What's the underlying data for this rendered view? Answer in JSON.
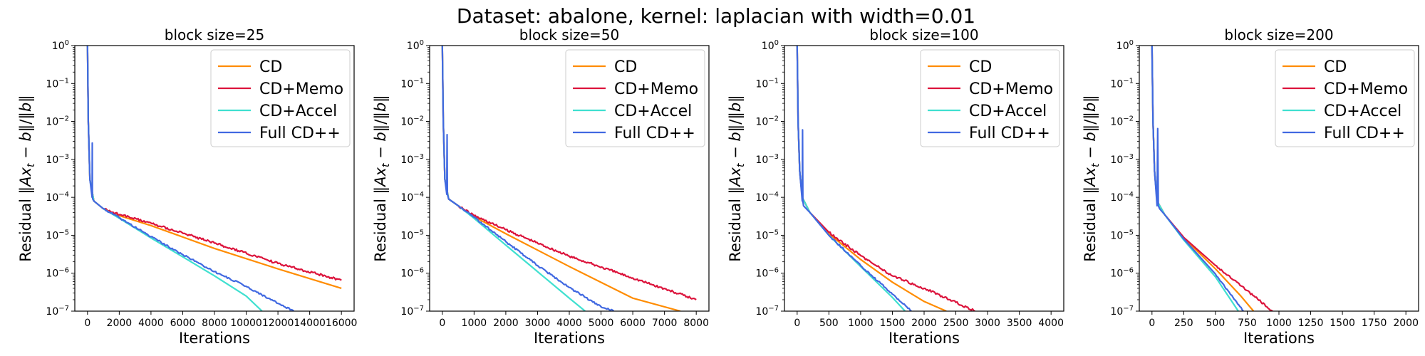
{
  "figure_title": "Dataset: abalone, kernel: laplacian with width=0.01",
  "colors": {
    "CD": "#ff8c00",
    "CD+Memo": "#dc143c",
    "CD+Accel": "#40e0d0",
    "Full CD++": "#4169e1"
  },
  "chart_data": [
    {
      "type": "line",
      "title": "block size=25",
      "xlabel": "Iterations",
      "ylabel": "Residual ‖Ax_t − b‖/‖b‖",
      "yscale": "log",
      "xlim": [
        -800,
        16800
      ],
      "ylim": [
        1e-07,
        1
      ],
      "xticks": [
        0,
        2000,
        4000,
        6000,
        8000,
        10000,
        12000,
        14000,
        16000
      ],
      "yticks": [
        "10^0",
        "10^-1",
        "10^-2",
        "10^-3",
        "10^-4",
        "10^-5",
        "10^-6",
        "10^-7"
      ],
      "legend_position": "upper right",
      "series": [
        {
          "name": "CD",
          "x": [
            0,
            50,
            150,
            400,
            1000,
            2000,
            4000,
            8000,
            12000,
            16000
          ],
          "y": [
            1,
            0.01,
            0.0003,
            8e-05,
            5e-05,
            3.3e-05,
            1.8e-05,
            4.5e-06,
            1.3e-06,
            4e-07
          ]
        },
        {
          "name": "CD+Memo",
          "x": [
            0,
            50,
            150,
            400,
            1000,
            2000,
            4000,
            8000,
            12000,
            16000
          ],
          "y": [
            1,
            0.01,
            0.0003,
            8e-05,
            5e-05,
            3.5e-05,
            2.1e-05,
            6.2e-06,
            1.8e-06,
            6.5e-07
          ]
        },
        {
          "name": "CD+Accel",
          "x": [
            0,
            50,
            150,
            400,
            1000,
            2000,
            4000,
            6000,
            8000,
            10000,
            11000
          ],
          "y": [
            1,
            0.01,
            0.0003,
            8e-05,
            5e-05,
            2.8e-05,
            8.5e-06,
            2.7e-06,
            8.5e-07,
            2.5e-07,
            1e-07
          ]
        },
        {
          "name": "Full CD++",
          "x": [
            0,
            50,
            150,
            290,
            300,
            310,
            330,
            400,
            1000,
            2000,
            4000,
            6000,
            8000,
            10000,
            12000,
            13000
          ],
          "y": [
            1,
            0.01,
            0.0003,
            0.0001,
            0.0027,
            0.0001,
            9e-05,
            8e-05,
            5e-05,
            2.9e-05,
            9.2e-06,
            3.1e-06,
            1.1e-06,
            4.5e-07,
            1.6e-07,
            1e-07
          ]
        }
      ]
    },
    {
      "type": "line",
      "title": "block size=50",
      "xlabel": "Iterations",
      "ylabel": "Residual ‖Ax_t − b‖/‖b‖",
      "yscale": "log",
      "xlim": [
        -400,
        8400
      ],
      "ylim": [
        1e-07,
        1
      ],
      "xticks": [
        0,
        1000,
        2000,
        3000,
        4000,
        5000,
        6000,
        7000,
        8000
      ],
      "yticks": [
        "10^0",
        "10^-1",
        "10^-2",
        "10^-3",
        "10^-4",
        "10^-5",
        "10^-6",
        "10^-7"
      ],
      "legend_position": "upper right",
      "series": [
        {
          "name": "CD",
          "x": [
            0,
            30,
            80,
            200,
            500,
            1000,
            2000,
            4000,
            6000,
            7500
          ],
          "y": [
            1,
            0.01,
            0.0003,
            9e-05,
            6e-05,
            3.1e-05,
            1.1e-05,
            1.5e-06,
            2.2e-07,
            1e-07
          ]
        },
        {
          "name": "CD+Memo",
          "x": [
            0,
            30,
            80,
            200,
            500,
            1000,
            2000,
            4000,
            6000,
            8000
          ],
          "y": [
            1,
            0.01,
            0.0003,
            9e-05,
            6e-05,
            3.3e-05,
            1.4e-05,
            2.8e-06,
            7.5e-07,
            2e-07
          ]
        },
        {
          "name": "CD+Accel",
          "x": [
            0,
            30,
            80,
            200,
            500,
            1000,
            2000,
            3000,
            4000,
            4500
          ],
          "y": [
            1,
            0.01,
            0.0003,
            9e-05,
            6e-05,
            2.8e-05,
            5.5e-06,
            1.1e-06,
            2.2e-07,
            1e-07
          ]
        },
        {
          "name": "Full CD++",
          "x": [
            0,
            30,
            80,
            140,
            150,
            160,
            200,
            500,
            1000,
            2000,
            3000,
            4000,
            5000,
            5400
          ],
          "y": [
            1,
            0.01,
            0.0003,
            0.00012,
            0.0045,
            0.00012,
            9e-05,
            6e-05,
            3e-05,
            6.8e-06,
            1.6e-06,
            4.2e-07,
            1.3e-07,
            1e-07
          ]
        }
      ]
    },
    {
      "type": "line",
      "title": "block size=100",
      "xlabel": "Iterations",
      "ylabel": "Residual ‖Ax_t − b‖/‖b‖",
      "yscale": "log",
      "xlim": [
        -200,
        4200
      ],
      "ylim": [
        1e-07,
        1
      ],
      "xticks": [
        0,
        500,
        1000,
        1500,
        2000,
        2500,
        3000,
        3500,
        4000
      ],
      "yticks": [
        "10^0",
        "10^-1",
        "10^-2",
        "10^-3",
        "10^-4",
        "10^-5",
        "10^-6",
        "10^-7"
      ],
      "legend_position": "upper right",
      "series": [
        {
          "name": "CD",
          "x": [
            0,
            15,
            40,
            80,
            200,
            500,
            1000,
            1500,
            2000,
            2350
          ],
          "y": [
            1,
            0.01,
            0.0005,
            0.0001,
            4e-05,
            1.1e-05,
            2.3e-06,
            5.8e-07,
            1.8e-07,
            1e-07
          ]
        },
        {
          "name": "CD+Memo",
          "x": [
            0,
            15,
            40,
            80,
            200,
            500,
            1000,
            1500,
            2000,
            2500,
            2800
          ],
          "y": [
            1,
            0.01,
            0.0005,
            0.0001,
            4e-05,
            1.2e-05,
            2.9e-06,
            8.5e-07,
            4e-07,
            1.7e-07,
            1e-07
          ]
        },
        {
          "name": "CD+Accel",
          "x": [
            0,
            15,
            40,
            80,
            200,
            500,
            1000,
            1500,
            1700
          ],
          "y": [
            1,
            0.01,
            0.0005,
            0.0001,
            4e-05,
            1e-05,
            1.5e-06,
            2.3e-07,
            1e-07
          ]
        },
        {
          "name": "Full CD++",
          "x": [
            0,
            15,
            40,
            80,
            85,
            90,
            100,
            200,
            500,
            1000,
            1500,
            1800
          ],
          "y": [
            1,
            0.01,
            0.0005,
            8e-05,
            0.006,
            8e-05,
            6e-05,
            4e-05,
            1e-05,
            1.6e-06,
            2.8e-07,
            1e-07
          ]
        }
      ]
    },
    {
      "type": "line",
      "title": "block size=200",
      "xlabel": "Iterations",
      "ylabel": "Residual ‖Ax_t − b‖/‖b‖",
      "yscale": "log",
      "xlim": [
        -100,
        2100
      ],
      "ylim": [
        1e-07,
        1
      ],
      "xticks": [
        0,
        250,
        500,
        750,
        1000,
        1250,
        1500,
        1750,
        2000
      ],
      "yticks": [
        "10^0",
        "10^-1",
        "10^-2",
        "10^-3",
        "10^-4",
        "10^-5",
        "10^-6",
        "10^-7"
      ],
      "legend_position": "upper right",
      "series": [
        {
          "name": "CD",
          "x": [
            0,
            8,
            20,
            40,
            100,
            250,
            500,
            700,
            800
          ],
          "y": [
            1,
            0.01,
            0.0005,
            8e-05,
            3.5e-05,
            8.5e-06,
            1.3e-06,
            2.5e-07,
            1e-07
          ]
        },
        {
          "name": "CD+Memo",
          "x": [
            0,
            8,
            20,
            40,
            100,
            250,
            500,
            750,
            950
          ],
          "y": [
            1,
            0.01,
            0.0005,
            8e-05,
            3.5e-05,
            8.8e-06,
            1.6e-06,
            3.5e-07,
            1e-07
          ]
        },
        {
          "name": "CD+Accel",
          "x": [
            0,
            8,
            20,
            40,
            100,
            250,
            500,
            680
          ],
          "y": [
            1,
            0.01,
            0.0005,
            8e-05,
            3.5e-05,
            7.5e-06,
            8e-07,
            1e-07
          ]
        },
        {
          "name": "Full CD++",
          "x": [
            0,
            8,
            20,
            40,
            45,
            50,
            60,
            100,
            250,
            500,
            720
          ],
          "y": [
            1,
            0.01,
            0.0005,
            6e-05,
            0.0065,
            6e-05,
            5e-05,
            3.5e-05,
            8e-06,
            9.5e-07,
            1e-07
          ]
        }
      ]
    }
  ]
}
